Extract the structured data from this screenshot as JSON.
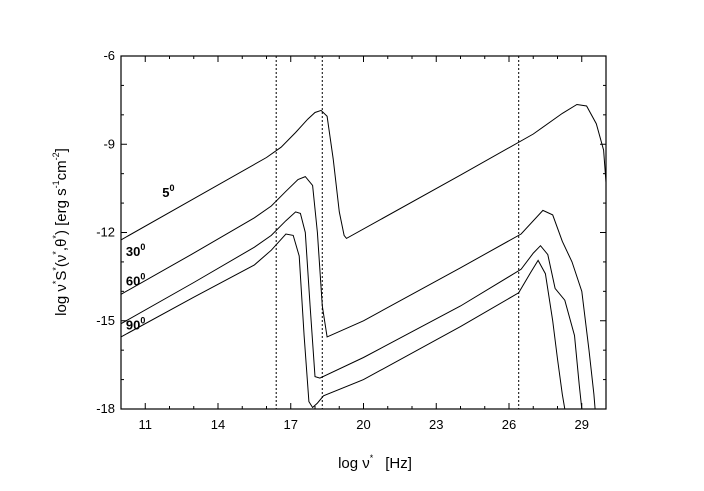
{
  "chart_data": {
    "type": "line",
    "title": "",
    "xlabel": {
      "base": "log ν",
      "sup": "*",
      "unit": "[Hz]"
    },
    "ylabel": {
      "p1": "log ν",
      "s1": "*",
      "p2": "S",
      "s2": "*",
      "p3": "(ν",
      "s3": "*",
      "p4": ",θ",
      "s4": "*",
      "p5": ")   [erg s",
      "s5": "-1",
      "p6": "cm",
      "s6": "-2",
      "p7": "]"
    },
    "xlim": [
      10,
      30
    ],
    "ylim": [
      -18,
      -6
    ],
    "xticks": [
      11,
      14,
      17,
      20,
      23,
      26,
      29
    ],
    "yticks": [
      -18,
      -15,
      -12,
      -9,
      -6
    ],
    "xtick_labels": [
      "11",
      "14",
      "17",
      "20",
      "23",
      "26",
      "29"
    ],
    "ytick_labels": [
      "-18",
      "-15",
      "-12",
      "-9",
      "-6"
    ],
    "grid": false,
    "vlines": [
      16.4,
      18.3,
      26.4
    ],
    "series": [
      {
        "label": "5",
        "sup": "0",
        "label_pos": [
          11.7,
          -10.8
        ],
        "x": [
          10,
          13,
          16,
          16.6,
          17.2,
          17.7,
          18.0,
          18.25,
          18.5,
          18.75,
          19.0,
          19.2,
          19.3,
          24,
          27,
          28.2,
          28.8,
          29.2,
          29.6,
          29.9,
          30
        ],
        "y": [
          -12.25,
          -10.85,
          -9.45,
          -9.1,
          -8.6,
          -8.15,
          -7.92,
          -7.85,
          -8.05,
          -9.5,
          -11.3,
          -12.1,
          -12.2,
          -10.05,
          -8.65,
          -7.95,
          -7.65,
          -7.7,
          -8.3,
          -9.2,
          -10.3
        ]
      },
      {
        "label": "30",
        "sup": "0",
        "label_pos": [
          10.2,
          -12.8
        ],
        "x": [
          10,
          13,
          15.5,
          16.2,
          16.8,
          17.3,
          17.6,
          17.9,
          18.1,
          18.3,
          18.5,
          20,
          24,
          26.5,
          27.4,
          27.8,
          28.2,
          28.6,
          29.0,
          29.3,
          29.5,
          29.55
        ],
        "y": [
          -14.1,
          -12.7,
          -11.5,
          -11.1,
          -10.6,
          -10.2,
          -10.1,
          -10.4,
          -12.0,
          -14.5,
          -15.55,
          -15.0,
          -13.2,
          -12.05,
          -11.25,
          -11.4,
          -12.3,
          -13.0,
          -14.0,
          -16.0,
          -17.5,
          -18
        ]
      },
      {
        "label": "60",
        "sup": "0",
        "label_pos": [
          10.2,
          -13.8
        ],
        "x": [
          10,
          13,
          15.5,
          16.2,
          16.8,
          17.2,
          17.4,
          17.6,
          17.8,
          18.0,
          18.2,
          20,
          24,
          26.5,
          27.0,
          27.3,
          27.6,
          27.9,
          28.3,
          28.7,
          28.9,
          29.0
        ],
        "y": [
          -15.1,
          -13.7,
          -12.5,
          -12.1,
          -11.6,
          -11.3,
          -11.35,
          -12.0,
          -14.5,
          -16.9,
          -16.95,
          -16.25,
          -14.5,
          -13.25,
          -12.7,
          -12.45,
          -12.75,
          -13.9,
          -14.3,
          -15.5,
          -17.2,
          -18
        ]
      },
      {
        "label": "90",
        "sup": "0",
        "label_pos": [
          10.2,
          -15.3
        ],
        "x": [
          10,
          13,
          15.5,
          16.2,
          16.8,
          17.1,
          17.35,
          17.55,
          17.75,
          17.9,
          18.1,
          18.35,
          20,
          24,
          26.4,
          26.9,
          27.2,
          27.5,
          27.8,
          28.0,
          28.2,
          28.3
        ],
        "y": [
          -15.55,
          -14.2,
          -13.1,
          -12.6,
          -12.05,
          -12.1,
          -12.8,
          -15.5,
          -17.75,
          -17.95,
          -17.8,
          -17.55,
          -17.0,
          -15.2,
          -14.05,
          -13.35,
          -12.95,
          -13.4,
          -15.0,
          -16.3,
          -17.5,
          -18
        ]
      }
    ]
  }
}
